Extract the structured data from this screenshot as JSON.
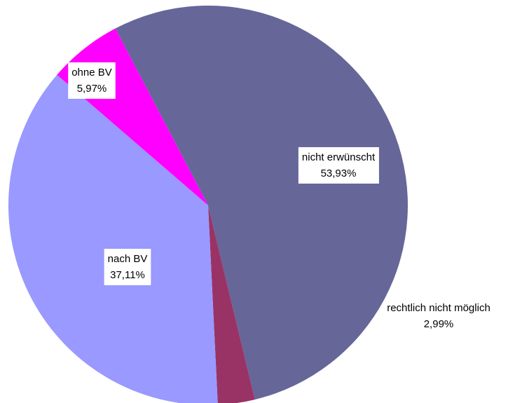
{
  "chart_data": {
    "type": "pie",
    "categories": [
      "nicht erwünscht",
      "rechtlich nicht möglich",
      "nach BV",
      "ohne BV"
    ],
    "values": [
      53.93,
      2.99,
      37.11,
      5.97
    ],
    "value_labels": [
      "53,93%",
      "2,99%",
      "37,11%",
      "5,97%"
    ],
    "colors": [
      "#666699",
      "#993366",
      "#9999ff",
      "#ff00ff"
    ]
  }
}
